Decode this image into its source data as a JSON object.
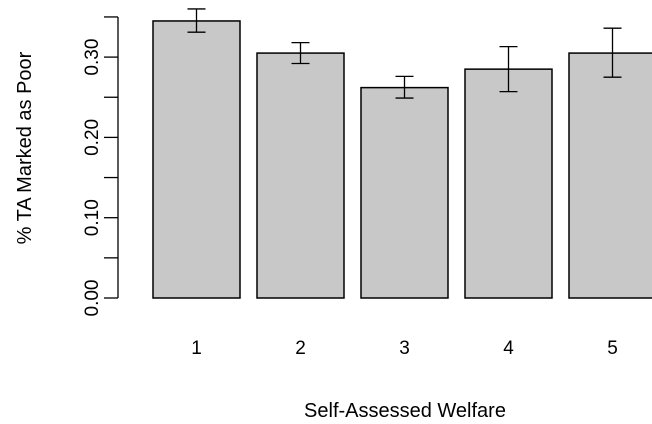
{
  "chart_data": {
    "type": "bar",
    "title": "",
    "xlabel": "Self-Assessed Welfare",
    "ylabel": "% TA Marked as Poor",
    "categories": [
      "1",
      "2",
      "3",
      "4",
      "5"
    ],
    "values": [
      0.345,
      0.305,
      0.262,
      0.285,
      0.305
    ],
    "error_low": [
      0.331,
      0.292,
      0.249,
      0.257,
      0.275
    ],
    "error_high": [
      0.36,
      0.318,
      0.276,
      0.313,
      0.336
    ],
    "ylim": [
      0,
      0.35
    ],
    "yticks": [
      0,
      0.05,
      0.1,
      0.15,
      0.2,
      0.25,
      0.3,
      0.35
    ],
    "ytick_labels": [
      "0.00",
      "",
      "0.10",
      "",
      "0.20",
      "",
      "0.30",
      ""
    ],
    "grid": false,
    "bar_color": "#c8c8c8",
    "bar_edge_color": "#000000"
  }
}
